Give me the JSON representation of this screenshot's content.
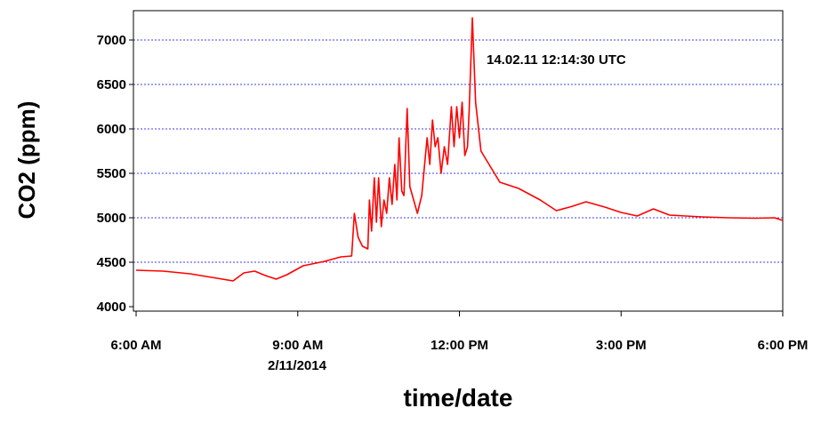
{
  "chart_data": {
    "type": "line",
    "y_label": "CO2 (ppm)",
    "x_label": "time/date",
    "date_label": "2/11/2014",
    "annotation": "14.02.11 12:14:30 UTC",
    "xlim": [
      5.95,
      18.0
    ],
    "ylim": [
      3950,
      7330
    ],
    "xticks": [
      {
        "value": 6,
        "label": "6:00 AM"
      },
      {
        "value": 9,
        "label": "9:00 AM"
      },
      {
        "value": 12,
        "label": "12:00 PM"
      },
      {
        "value": 15,
        "label": "3:00 PM"
      },
      {
        "value": 18,
        "label": "6:00 PM"
      }
    ],
    "yticks": [
      4000,
      4500,
      5000,
      5500,
      6000,
      6500,
      7000
    ],
    "grid": true,
    "series": [
      {
        "name": "CO2",
        "color": "#ff0000",
        "x": [
          6.0,
          6.5,
          7.0,
          7.5,
          7.8,
          8.0,
          8.2,
          8.4,
          8.6,
          8.8,
          9.1,
          9.5,
          9.8,
          10.0,
          10.05,
          10.12,
          10.2,
          10.3,
          10.33,
          10.37,
          10.42,
          10.46,
          10.5,
          10.55,
          10.6,
          10.65,
          10.7,
          10.75,
          10.8,
          10.84,
          10.88,
          10.93,
          10.97,
          11.03,
          11.08,
          11.15,
          11.22,
          11.3,
          11.4,
          11.45,
          11.5,
          11.55,
          11.6,
          11.66,
          11.72,
          11.78,
          11.85,
          11.9,
          11.95,
          12.0,
          12.05,
          12.1,
          12.15,
          12.18,
          12.24,
          12.3,
          12.4,
          12.55,
          12.75,
          13.1,
          13.5,
          13.8,
          14.1,
          14.35,
          14.7,
          15.0,
          15.3,
          15.6,
          15.9,
          16.5,
          17.0,
          17.5,
          17.85,
          18.0
        ],
        "values": [
          4410,
          4400,
          4370,
          4320,
          4290,
          4380,
          4400,
          4350,
          4310,
          4360,
          4460,
          4510,
          4560,
          4570,
          5050,
          4780,
          4680,
          4650,
          5200,
          4850,
          5450,
          4950,
          5450,
          4900,
          5200,
          5050,
          5450,
          5150,
          5600,
          5200,
          5900,
          5300,
          5250,
          6230,
          5350,
          5200,
          5050,
          5250,
          5900,
          5600,
          6100,
          5800,
          5900,
          5500,
          5800,
          5600,
          6250,
          5800,
          6250,
          5900,
          6300,
          5700,
          5800,
          6200,
          7250,
          6300,
          5750,
          5600,
          5400,
          5330,
          5200,
          5080,
          5130,
          5180,
          5120,
          5060,
          5020,
          5100,
          5030,
          5010,
          5000,
          4995,
          5000,
          4970
        ]
      }
    ]
  }
}
